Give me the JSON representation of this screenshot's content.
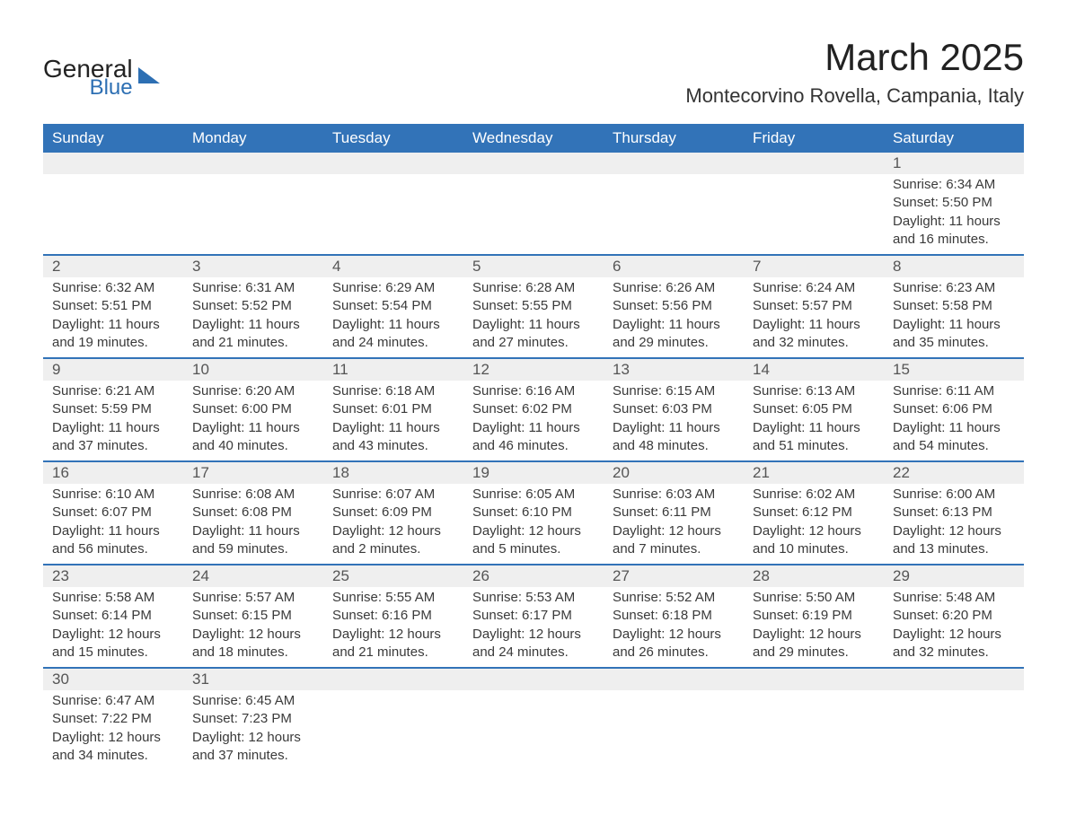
{
  "brand": {
    "word1": "General",
    "word2": "Blue"
  },
  "title": "March 2025",
  "location": "Montecorvino Rovella, Campania, Italy",
  "colors": {
    "header_bg": "#3273b8",
    "header_text": "#ffffff",
    "row_divider": "#3273b8",
    "daynum_bg": "#efefef",
    "text": "#3a3a3a",
    "logo_blue": "#2d6fb3"
  },
  "typography": {
    "title_fontsize": 42,
    "location_fontsize": 22,
    "header_fontsize": 17,
    "daynum_fontsize": 17,
    "body_fontsize": 15
  },
  "layout": {
    "columns": 7,
    "rows": 6
  },
  "weekdays": [
    "Sunday",
    "Monday",
    "Tuesday",
    "Wednesday",
    "Thursday",
    "Friday",
    "Saturday"
  ],
  "weeks": [
    [
      {
        "day": "",
        "lines": []
      },
      {
        "day": "",
        "lines": []
      },
      {
        "day": "",
        "lines": []
      },
      {
        "day": "",
        "lines": []
      },
      {
        "day": "",
        "lines": []
      },
      {
        "day": "",
        "lines": []
      },
      {
        "day": "1",
        "lines": [
          "Sunrise: 6:34 AM",
          "Sunset: 5:50 PM",
          "Daylight: 11 hours and 16 minutes."
        ]
      }
    ],
    [
      {
        "day": "2",
        "lines": [
          "Sunrise: 6:32 AM",
          "Sunset: 5:51 PM",
          "Daylight: 11 hours and 19 minutes."
        ]
      },
      {
        "day": "3",
        "lines": [
          "Sunrise: 6:31 AM",
          "Sunset: 5:52 PM",
          "Daylight: 11 hours and 21 minutes."
        ]
      },
      {
        "day": "4",
        "lines": [
          "Sunrise: 6:29 AM",
          "Sunset: 5:54 PM",
          "Daylight: 11 hours and 24 minutes."
        ]
      },
      {
        "day": "5",
        "lines": [
          "Sunrise: 6:28 AM",
          "Sunset: 5:55 PM",
          "Daylight: 11 hours and 27 minutes."
        ]
      },
      {
        "day": "6",
        "lines": [
          "Sunrise: 6:26 AM",
          "Sunset: 5:56 PM",
          "Daylight: 11 hours and 29 minutes."
        ]
      },
      {
        "day": "7",
        "lines": [
          "Sunrise: 6:24 AM",
          "Sunset: 5:57 PM",
          "Daylight: 11 hours and 32 minutes."
        ]
      },
      {
        "day": "8",
        "lines": [
          "Sunrise: 6:23 AM",
          "Sunset: 5:58 PM",
          "Daylight: 11 hours and 35 minutes."
        ]
      }
    ],
    [
      {
        "day": "9",
        "lines": [
          "Sunrise: 6:21 AM",
          "Sunset: 5:59 PM",
          "Daylight: 11 hours and 37 minutes."
        ]
      },
      {
        "day": "10",
        "lines": [
          "Sunrise: 6:20 AM",
          "Sunset: 6:00 PM",
          "Daylight: 11 hours and 40 minutes."
        ]
      },
      {
        "day": "11",
        "lines": [
          "Sunrise: 6:18 AM",
          "Sunset: 6:01 PM",
          "Daylight: 11 hours and 43 minutes."
        ]
      },
      {
        "day": "12",
        "lines": [
          "Sunrise: 6:16 AM",
          "Sunset: 6:02 PM",
          "Daylight: 11 hours and 46 minutes."
        ]
      },
      {
        "day": "13",
        "lines": [
          "Sunrise: 6:15 AM",
          "Sunset: 6:03 PM",
          "Daylight: 11 hours and 48 minutes."
        ]
      },
      {
        "day": "14",
        "lines": [
          "Sunrise: 6:13 AM",
          "Sunset: 6:05 PM",
          "Daylight: 11 hours and 51 minutes."
        ]
      },
      {
        "day": "15",
        "lines": [
          "Sunrise: 6:11 AM",
          "Sunset: 6:06 PM",
          "Daylight: 11 hours and 54 minutes."
        ]
      }
    ],
    [
      {
        "day": "16",
        "lines": [
          "Sunrise: 6:10 AM",
          "Sunset: 6:07 PM",
          "Daylight: 11 hours and 56 minutes."
        ]
      },
      {
        "day": "17",
        "lines": [
          "Sunrise: 6:08 AM",
          "Sunset: 6:08 PM",
          "Daylight: 11 hours and 59 minutes."
        ]
      },
      {
        "day": "18",
        "lines": [
          "Sunrise: 6:07 AM",
          "Sunset: 6:09 PM",
          "Daylight: 12 hours and 2 minutes."
        ]
      },
      {
        "day": "19",
        "lines": [
          "Sunrise: 6:05 AM",
          "Sunset: 6:10 PM",
          "Daylight: 12 hours and 5 minutes."
        ]
      },
      {
        "day": "20",
        "lines": [
          "Sunrise: 6:03 AM",
          "Sunset: 6:11 PM",
          "Daylight: 12 hours and 7 minutes."
        ]
      },
      {
        "day": "21",
        "lines": [
          "Sunrise: 6:02 AM",
          "Sunset: 6:12 PM",
          "Daylight: 12 hours and 10 minutes."
        ]
      },
      {
        "day": "22",
        "lines": [
          "Sunrise: 6:00 AM",
          "Sunset: 6:13 PM",
          "Daylight: 12 hours and 13 minutes."
        ]
      }
    ],
    [
      {
        "day": "23",
        "lines": [
          "Sunrise: 5:58 AM",
          "Sunset: 6:14 PM",
          "Daylight: 12 hours and 15 minutes."
        ]
      },
      {
        "day": "24",
        "lines": [
          "Sunrise: 5:57 AM",
          "Sunset: 6:15 PM",
          "Daylight: 12 hours and 18 minutes."
        ]
      },
      {
        "day": "25",
        "lines": [
          "Sunrise: 5:55 AM",
          "Sunset: 6:16 PM",
          "Daylight: 12 hours and 21 minutes."
        ]
      },
      {
        "day": "26",
        "lines": [
          "Sunrise: 5:53 AM",
          "Sunset: 6:17 PM",
          "Daylight: 12 hours and 24 minutes."
        ]
      },
      {
        "day": "27",
        "lines": [
          "Sunrise: 5:52 AM",
          "Sunset: 6:18 PM",
          "Daylight: 12 hours and 26 minutes."
        ]
      },
      {
        "day": "28",
        "lines": [
          "Sunrise: 5:50 AM",
          "Sunset: 6:19 PM",
          "Daylight: 12 hours and 29 minutes."
        ]
      },
      {
        "day": "29",
        "lines": [
          "Sunrise: 5:48 AM",
          "Sunset: 6:20 PM",
          "Daylight: 12 hours and 32 minutes."
        ]
      }
    ],
    [
      {
        "day": "30",
        "lines": [
          "Sunrise: 6:47 AM",
          "Sunset: 7:22 PM",
          "Daylight: 12 hours and 34 minutes."
        ]
      },
      {
        "day": "31",
        "lines": [
          "Sunrise: 6:45 AM",
          "Sunset: 7:23 PM",
          "Daylight: 12 hours and 37 minutes."
        ]
      },
      {
        "day": "",
        "lines": []
      },
      {
        "day": "",
        "lines": []
      },
      {
        "day": "",
        "lines": []
      },
      {
        "day": "",
        "lines": []
      },
      {
        "day": "",
        "lines": []
      }
    ]
  ]
}
